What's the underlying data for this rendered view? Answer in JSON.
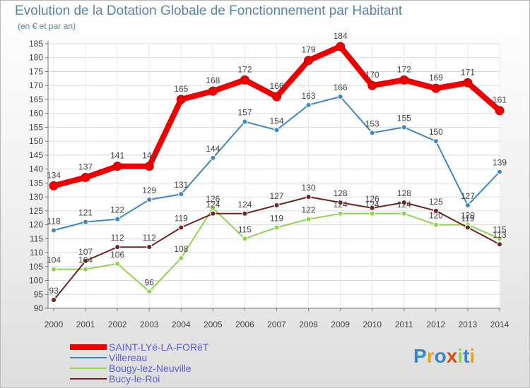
{
  "header": {
    "title": "Evolution de la Dotation Globale de Fonctionnement par Habitant",
    "subtitle": "(en € et par an)"
  },
  "brand": {
    "text": "Proxiti"
  },
  "colors": {
    "primary": "#ee0000",
    "villereau": "#3d86c6",
    "bougy": "#8ed44e",
    "bucy": "#702222",
    "text": "#444444",
    "title": "#5a84a8"
  },
  "chart_data": {
    "type": "line",
    "title": "Evolution de la Dotation Globale de Fonctionnement par Habitant",
    "subtitle": "(en € et par an)",
    "xlabel": "",
    "ylabel": "",
    "x": [
      "2000",
      "2001",
      "2002",
      "2003",
      "2004",
      "2005",
      "2006",
      "2007",
      "2008",
      "2009",
      "2010",
      "2011",
      "2012",
      "2013",
      "2014"
    ],
    "ylim": [
      90,
      185
    ],
    "yticks": [
      90,
      95,
      100,
      105,
      110,
      115,
      120,
      125,
      130,
      135,
      140,
      145,
      150,
      155,
      160,
      165,
      170,
      175,
      180,
      185
    ],
    "grid": true,
    "legend_position": "bottom-left",
    "series": [
      {
        "name": "SAINT-LYé-LA-FORêT",
        "color": "#ee0000",
        "values": [
          134,
          137,
          141,
          141,
          165,
          168,
          172,
          166,
          179,
          184,
          170,
          172,
          169,
          171,
          161
        ]
      },
      {
        "name": "Villereau",
        "color": "#3d86c6",
        "values": [
          118,
          121,
          122,
          129,
          131,
          144,
          157,
          154,
          163,
          166,
          153,
          155,
          150,
          127,
          139
        ]
      },
      {
        "name": "Bougy-lez-Neuville",
        "color": "#8ed44e",
        "values": [
          104,
          104,
          106,
          96,
          108,
          126,
          115,
          119,
          122,
          124,
          124,
          124,
          120,
          120,
          115
        ]
      },
      {
        "name": "Bucy-le-Roi",
        "color": "#702222",
        "values": [
          93,
          107,
          112,
          112,
          119,
          124,
          124,
          127,
          130,
          128,
          126,
          128,
          125,
          119,
          113
        ]
      }
    ]
  }
}
